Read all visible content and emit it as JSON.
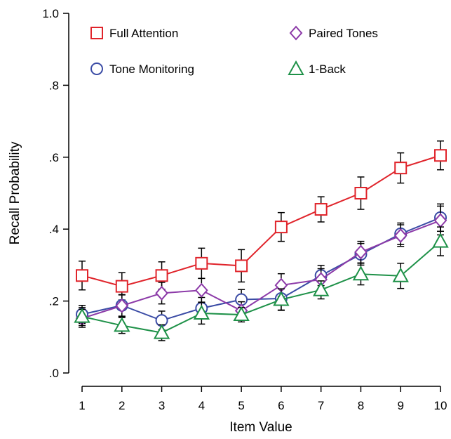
{
  "chart_data": {
    "type": "line",
    "xlabel": "Item Value",
    "ylabel": "Recall Probability",
    "x": [
      1,
      2,
      3,
      4,
      5,
      6,
      7,
      8,
      9,
      10
    ],
    "xticks": [
      "1",
      "2",
      "3",
      "4",
      "5",
      "6",
      "7",
      "8",
      "9",
      "10"
    ],
    "ylim": [
      0,
      1
    ],
    "yticks": [
      {
        "value": 0,
        "label": ".0"
      },
      {
        "value": 0.2,
        "label": ".2"
      },
      {
        "value": 0.4,
        "label": ".4"
      },
      {
        "value": 0.6,
        "label": ".6"
      },
      {
        "value": 0.8,
        "label": ".8"
      },
      {
        "value": 1.0,
        "label": "1.0"
      }
    ],
    "grid": false,
    "legend": "top",
    "series": [
      {
        "name": "Full Attention",
        "color": "#e0242b",
        "marker": "square",
        "values": [
          0.271,
          0.241,
          0.271,
          0.305,
          0.298,
          0.406,
          0.455,
          0.5,
          0.57,
          0.605
        ],
        "errors": [
          0.04,
          0.038,
          0.038,
          0.042,
          0.045,
          0.04,
          0.035,
          0.045,
          0.042,
          0.04
        ]
      },
      {
        "name": "Tone Monitoring",
        "color": "#3a4ba5",
        "marker": "circle",
        "values": [
          0.163,
          0.188,
          0.146,
          0.18,
          0.204,
          0.207,
          0.271,
          0.33,
          0.387,
          0.432
        ],
        "errors": [
          0.025,
          0.03,
          0.026,
          0.03,
          0.028,
          0.032,
          0.028,
          0.03,
          0.03,
          0.038
        ]
      },
      {
        "name": "Paired Tones",
        "color": "#8c3aa8",
        "marker": "diamond",
        "values": [
          0.152,
          0.187,
          0.222,
          0.23,
          0.173,
          0.244,
          0.26,
          0.336,
          0.382,
          0.424
        ],
        "errors": [
          0.025,
          0.03,
          0.03,
          0.033,
          0.025,
          0.032,
          0.03,
          0.03,
          0.03,
          0.04
        ]
      },
      {
        "name": "1-Back",
        "color": "#1e9148",
        "marker": "triangle",
        "values": [
          0.157,
          0.132,
          0.112,
          0.166,
          0.162,
          0.204,
          0.231,
          0.275,
          0.27,
          0.366
        ],
        "errors": [
          0.025,
          0.022,
          0.022,
          0.03,
          0.02,
          0.03,
          0.025,
          0.03,
          0.035,
          0.04
        ]
      }
    ]
  }
}
